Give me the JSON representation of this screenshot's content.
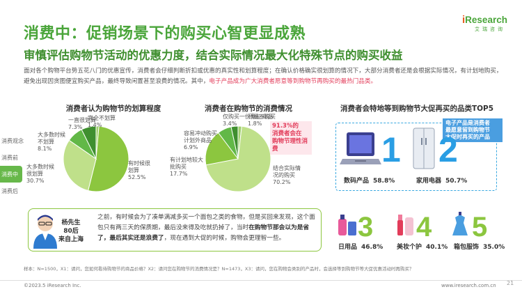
{
  "title": "消费中：促销场景下的购买心智更显成熟",
  "subtitle": "审慎评估购物节活动的优惠力度，结合实际情况最大化特殊节点的购买收益",
  "intro": {
    "p1": "面对各个购物平台势五花八门的优惠宣传，消费者会仔细判断折扣或优惠的真实性和划算程度；在确认价格确实很划算的情况下，大部分消费者还是会根据实际",
    "p2": "情况，有计划地购买，避免出现因贪图便宜购买产品，最终导致闲置甚至浪费的情况。其中，",
    "p2_hl": "电子产品成为广大消费者愿意等到购物节再购买的最热门品类。"
  },
  "logo": {
    "brand_i": "i",
    "brand_r": "Research",
    "cn": "艾瑞咨询"
  },
  "sidebar": {
    "items": [
      "消费观念",
      "消费前",
      "消费中",
      "消费后"
    ],
    "active_index": 2
  },
  "charts": {
    "left_title": "消费者认为购物节的划算程度",
    "mid_title": "消费者在购物节的消费情况",
    "right_title": "消费者会特地等到购物节大促再买的品类TOP5"
  },
  "chart_data": [
    {
      "type": "pie",
      "title": "消费者认为购物节的划算程度",
      "slices": [
        {
          "label": "有时候很划算",
          "value": 52.5,
          "color": "#8cc63f"
        },
        {
          "label": "大多数时候很划算",
          "value": 30.7,
          "color": "#bfe08a"
        },
        {
          "label": "大多数时候不划算",
          "value": 8.1,
          "color": "#62b847"
        },
        {
          "label": "一直很划算",
          "value": 7.3,
          "color": "#3f8f2f"
        },
        {
          "label": "完全不划算",
          "value": 1.4,
          "color": "#a0d070"
        }
      ]
    },
    {
      "type": "pie",
      "title": "消费者在购物节的消费情况",
      "slices": [
        {
          "label": "结合实际情况的购买",
          "value": 70.2,
          "color": "#bfe08a"
        },
        {
          "label": "有计划地较大批购买",
          "value": 17.7,
          "color": "#8cc63f"
        },
        {
          "label": "容易冲动购买计划外商品",
          "value": 6.9,
          "color": "#62b847"
        },
        {
          "label": "仅购买一份象征商品",
          "value": 3.4,
          "color": "#3f8f2f"
        },
        {
          "label": "尽量不购买",
          "value": 1.8,
          "color": "#a0d070"
        }
      ],
      "annotation": {
        "line1": "91.3%的",
        "line2": "消费者会在",
        "line3": "购物节理性消费"
      }
    },
    {
      "type": "table",
      "title": "消费者会特地等到购物节大促再买的品类TOP5",
      "rows": [
        {
          "rank": "1",
          "label": "数码产品",
          "value": "58.8%"
        },
        {
          "rank": "2",
          "label": "家用电器",
          "value": "50.7%"
        },
        {
          "rank": "3",
          "label": "日用品",
          "value": "46.8%"
        },
        {
          "rank": "4",
          "label": "美妆个护",
          "value": "40.1%"
        },
        {
          "rank": "5",
          "label": "箱包服饰",
          "value": "35.0%"
        }
      ],
      "callout": {
        "line1": "电子产品是消费者",
        "line2": "最愿意留到购物节",
        "line3": "大促时再买的产品"
      }
    }
  ],
  "quote": {
    "persona": {
      "line1": "杨先生",
      "line2": "80后",
      "line3": "来自上海"
    },
    "text1": "之前，有时候会为了凑单满减多买一个面包之类的食物，但是买回来发现，这个面包只有两三天的保质期，最后没来得及吃就扔掉了，当时",
    "text_bold1": "在购物节那会以为是省了，最后其实还是浪费了",
    "text2": "，现在遇到大促的时候，购物会更理智一些。"
  },
  "footnote": "样本：N=1500，X1：请问，您如何看待购物节的商品价格？X2：请问您在购物节的消费情况是？N=1473，X3：请问，您在购物会类别的产品时，会选择等到购物节等大促优惠活动时再购买？",
  "copyright": "©2023.5 iResearch Inc.",
  "site": "www.iresearch.com.cn",
  "page": "21"
}
